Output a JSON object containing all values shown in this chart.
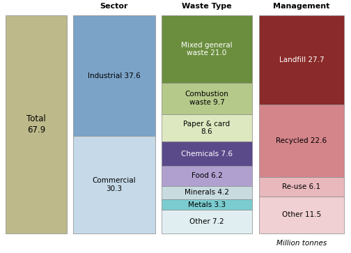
{
  "total": {
    "label": "Total\n67.9",
    "value": 67.9,
    "color": "#bdb98a"
  },
  "sector": {
    "title": "Sector",
    "items": [
      {
        "label": "Industrial 37.6",
        "value": 37.6,
        "color": "#7ba3c8"
      },
      {
        "label": "Commercial\n30.3",
        "value": 30.3,
        "color": "#c5d9e8"
      }
    ]
  },
  "waste_type": {
    "title": "Waste Type",
    "items": [
      {
        "label": "Mixed general\nwaste 21.0",
        "value": 21.0,
        "color": "#6b8e3e",
        "text_color": "white"
      },
      {
        "label": "Combustion\nwaste 9.7",
        "value": 9.7,
        "color": "#b5c98a",
        "text_color": "black"
      },
      {
        "label": "Paper & card\n8.6",
        "value": 8.6,
        "color": "#dde8c0",
        "text_color": "black"
      },
      {
        "label": "Chemicals 7.6",
        "value": 7.6,
        "color": "#5b4a8a",
        "text_color": "white"
      },
      {
        "label": "Food 6.2",
        "value": 6.2,
        "color": "#b0a0d0",
        "text_color": "black"
      },
      {
        "label": "Minerals 4.2",
        "value": 4.2,
        "color": "#c8dce0",
        "text_color": "black"
      },
      {
        "label": "Metals 3.3",
        "value": 3.3,
        "color": "#7bccd0",
        "text_color": "black"
      },
      {
        "label": "Other 7.2",
        "value": 7.2,
        "color": "#e0eef2",
        "text_color": "black"
      }
    ]
  },
  "management": {
    "title": "Management",
    "items": [
      {
        "label": "Landfill 27.7",
        "value": 27.7,
        "color": "#8b2a2a",
        "text_color": "white"
      },
      {
        "label": "Recycled 22.6",
        "value": 22.6,
        "color": "#d4858a",
        "text_color": "black"
      },
      {
        "label": "Re-use 6.1",
        "value": 6.1,
        "color": "#e8b8bc",
        "text_color": "black"
      },
      {
        "label": "Other 11.5",
        "value": 11.5,
        "color": "#f0d0d2",
        "text_color": "black"
      }
    ]
  },
  "total_value": 67.9,
  "footer": "Million tonnes",
  "background_color": "#ffffff",
  "border_color": "#888888",
  "title_fontsize": 8.0,
  "label_fontsize": 7.5
}
